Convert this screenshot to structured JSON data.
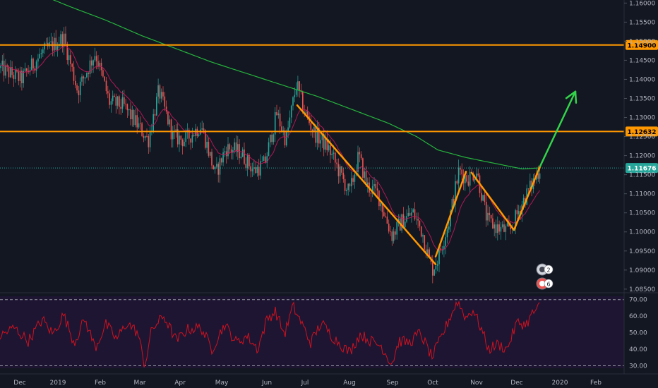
{
  "colors": {
    "background": "#131722",
    "rsi_background": "#1e1533",
    "candle_up": "#26a69a",
    "candle_down": "#ef5350",
    "sma_long": "#26b43c",
    "ema_short": "#c2185b",
    "resistance": "#ff9800",
    "pattern": "#ff9800",
    "arrow": "#33d44a",
    "rsi_line": "#d0121e",
    "current_price_tag": "#26a69a",
    "price_tag_text": "#000000"
  },
  "chart_data": [
    {
      "type": "candlestick",
      "instrument_pane": "price",
      "y_axis": {
        "ticks": [
          "1.16000",
          "1.15500",
          "1.15000",
          "1.14500",
          "1.14000",
          "1.13500",
          "1.13000",
          "1.12500",
          "1.12000",
          "1.11500",
          "1.11000",
          "1.10500",
          "1.10000",
          "1.09500",
          "1.09000",
          "1.08500"
        ],
        "ylim": [
          1.0846,
          1.1608
        ]
      },
      "x_axis": {
        "labels": [
          "Dec",
          "2019",
          "Feb",
          "Mar",
          "Apr",
          "May",
          "Jun",
          "Jul",
          "Aug",
          "Sep",
          "Oct",
          "Nov",
          "Dec",
          "2020",
          "Feb"
        ]
      },
      "horizontal_levels": [
        {
          "value": 1.149,
          "label": "1.14900"
        },
        {
          "value": 1.12632,
          "label": "1.12632"
        }
      ],
      "current_price": {
        "value": 1.11676,
        "label": "1.11676"
      },
      "price_path_anchors": [
        [
          0,
          1.143
        ],
        [
          30,
          1.14
        ],
        [
          60,
          1.147
        ],
        [
          90,
          1.151
        ],
        [
          110,
          1.137
        ],
        [
          135,
          1.147
        ],
        [
          155,
          1.134
        ],
        [
          175,
          1.133
        ],
        [
          195,
          1.128
        ],
        [
          210,
          1.124
        ],
        [
          225,
          1.137
        ],
        [
          245,
          1.125
        ],
        [
          262,
          1.124
        ],
        [
          285,
          1.128
        ],
        [
          305,
          1.115
        ],
        [
          320,
          1.122
        ],
        [
          340,
          1.121
        ],
        [
          360,
          1.116
        ],
        [
          375,
          1.118
        ],
        [
          392,
          1.131
        ],
        [
          405,
          1.124
        ],
        [
          420,
          1.139
        ],
        [
          430,
          1.132
        ],
        [
          445,
          1.126
        ],
        [
          465,
          1.122
        ],
        [
          480,
          1.116
        ],
        [
          495,
          1.11
        ],
        [
          508,
          1.12
        ],
        [
          520,
          1.112
        ],
        [
          535,
          1.11
        ],
        [
          555,
          1.099
        ],
        [
          570,
          1.103
        ],
        [
          585,
          1.105
        ],
        [
          598,
          1.1
        ],
        [
          612,
          1.09
        ],
        [
          620,
          1.093
        ],
        [
          635,
          1.102
        ],
        [
          650,
          1.116
        ],
        [
          662,
          1.114
        ],
        [
          675,
          1.116
        ],
        [
          690,
          1.103
        ],
        [
          705,
          1.101
        ],
        [
          722,
          1.1
        ],
        [
          738,
          1.107
        ],
        [
          752,
          1.112
        ],
        [
          765,
          1.1168
        ]
      ],
      "sma_path_anchors": [
        [
          60,
          1.162
        ],
        [
          100,
          1.159
        ],
        [
          150,
          1.1555
        ],
        [
          200,
          1.1515
        ],
        [
          250,
          1.148
        ],
        [
          300,
          1.1445
        ],
        [
          350,
          1.1415
        ],
        [
          400,
          1.1385
        ],
        [
          450,
          1.1355
        ],
        [
          500,
          1.132
        ],
        [
          550,
          1.1285
        ],
        [
          590,
          1.125
        ],
        [
          620,
          1.1215
        ],
        [
          660,
          1.1195
        ],
        [
          700,
          1.118
        ],
        [
          740,
          1.1165
        ],
        [
          765,
          1.1168
        ]
      ],
      "pattern_lines": [
        [
          [
            421,
            1.1332
          ],
          [
            617,
            1.0915
          ]
        ],
        [
          [
            617,
            1.0935
          ],
          [
            660,
            1.1158
          ]
        ],
        [
          [
            668,
            1.1155
          ],
          [
            728,
            1.1005
          ]
        ],
        [
          [
            728,
            1.1005
          ],
          [
            765,
            1.1172
          ]
        ]
      ],
      "projection_arrow": [
        [
          765,
          1.1172
        ],
        [
          815,
          1.1368
        ]
      ]
    },
    {
      "type": "line",
      "instrument_pane": "rsi",
      "y_axis": {
        "ticks": [
          "70.00",
          "60.00",
          "50.00",
          "40.00",
          "30.00"
        ],
        "ylim": [
          28.5,
          72
        ]
      },
      "reference_levels": [
        70,
        30
      ],
      "rsi_path_anchors": [
        [
          0,
          48
        ],
        [
          20,
          53
        ],
        [
          40,
          45
        ],
        [
          60,
          58
        ],
        [
          75,
          49
        ],
        [
          90,
          61
        ],
        [
          105,
          44
        ],
        [
          120,
          58
        ],
        [
          135,
          41
        ],
        [
          150,
          55
        ],
        [
          165,
          46
        ],
        [
          180,
          56
        ],
        [
          195,
          50
        ],
        [
          205,
          30
        ],
        [
          215,
          52
        ],
        [
          232,
          60
        ],
        [
          250,
          45
        ],
        [
          265,
          52
        ],
        [
          285,
          53
        ],
        [
          300,
          40
        ],
        [
          318,
          55
        ],
        [
          335,
          44
        ],
        [
          350,
          48
        ],
        [
          365,
          40
        ],
        [
          378,
          58
        ],
        [
          390,
          63
        ],
        [
          403,
          49
        ],
        [
          415,
          66
        ],
        [
          428,
          55
        ],
        [
          440,
          44
        ],
        [
          455,
          56
        ],
        [
          470,
          48
        ],
        [
          485,
          42
        ],
        [
          495,
          38
        ],
        [
          510,
          49
        ],
        [
          525,
          45
        ],
        [
          540,
          42
        ],
        [
          555,
          31
        ],
        [
          565,
          45
        ],
        [
          580,
          44
        ],
        [
          595,
          50
        ],
        [
          612,
          35
        ],
        [
          625,
          47
        ],
        [
          638,
          60
        ],
        [
          648,
          69
        ],
        [
          660,
          59
        ],
        [
          670,
          64
        ],
        [
          682,
          52
        ],
        [
          692,
          40
        ],
        [
          705,
          43
        ],
        [
          718,
          40
        ],
        [
          732,
          56
        ],
        [
          745,
          55
        ],
        [
          755,
          62
        ],
        [
          765,
          66
        ]
      ]
    }
  ],
  "sidebar_badges": [
    {
      "icon": "news-icon",
      "count": "2"
    },
    {
      "icon": "dividend-icon",
      "count": "6"
    }
  ]
}
